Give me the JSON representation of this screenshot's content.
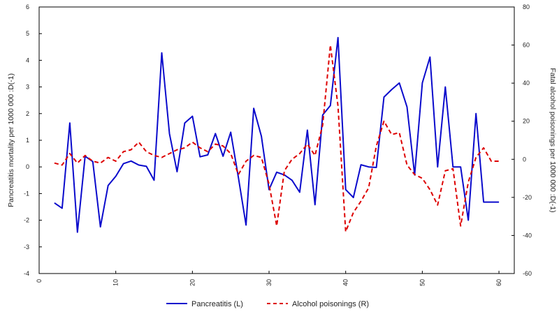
{
  "chart_data": {
    "type": "line",
    "xlim": [
      0,
      62
    ],
    "x_ticks": [
      0,
      10,
      20,
      30,
      40,
      50,
      60
    ],
    "left_axis": {
      "label": "Pancreatitis mortality per 1000 000 :D(-1)",
      "ylim": [
        -4,
        6
      ],
      "ticks": [
        -4,
        -3,
        -2,
        -1,
        0,
        1,
        2,
        3,
        4,
        5,
        6
      ]
    },
    "right_axis": {
      "label": "Fatal alcohol poisonings per 1000 000 :D(-1)",
      "ylim": [
        -60,
        80
      ],
      "ticks": [
        -60,
        -40,
        -20,
        0,
        20,
        40,
        60,
        80
      ]
    },
    "grid": false,
    "legend_position": "bottom",
    "series": [
      {
        "name": "Pancreatitis (L)",
        "axis": "left",
        "color": "#0a0acc",
        "style": "solid",
        "x": [
          2,
          3,
          4,
          5,
          6,
          7,
          8,
          9,
          10,
          11,
          12,
          13,
          14,
          15,
          16,
          17,
          18,
          19,
          20,
          21,
          22,
          23,
          24,
          25,
          26,
          27,
          28,
          29,
          30,
          31,
          32,
          33,
          34,
          35,
          36,
          37,
          38,
          39,
          40,
          41,
          42,
          43,
          44,
          45,
          46,
          47,
          48,
          49,
          50,
          51,
          52,
          53,
          54,
          55,
          56,
          57,
          58,
          59,
          60
        ],
        "values": [
          -1.35,
          -1.55,
          1.65,
          -2.45,
          0.4,
          0.2,
          -2.25,
          -0.7,
          -0.35,
          0.12,
          0.22,
          0.07,
          0.02,
          -0.5,
          4.28,
          1.25,
          -0.18,
          1.65,
          1.9,
          0.38,
          0.45,
          1.25,
          0.4,
          1.3,
          -0.4,
          -2.18,
          2.2,
          1.15,
          -0.85,
          -0.2,
          -0.3,
          -0.5,
          -0.95,
          1.38,
          -1.42,
          1.95,
          2.3,
          4.85,
          -0.85,
          -1.15,
          0.08,
          0,
          -0.02,
          2.62,
          2.9,
          3.15,
          2.25,
          -0.3,
          3.15,
          4.12,
          0,
          3,
          0,
          0,
          -2,
          2,
          -1.32,
          -1.32,
          -1.32
        ]
      },
      {
        "name": "Alcohol poisonings (R)",
        "axis": "right",
        "color": "#dd0000",
        "style": "dashed",
        "x": [
          2,
          3,
          4,
          5,
          6,
          7,
          8,
          9,
          10,
          11,
          12,
          13,
          14,
          15,
          16,
          17,
          18,
          19,
          20,
          21,
          22,
          23,
          24,
          25,
          26,
          27,
          28,
          29,
          30,
          31,
          32,
          33,
          34,
          35,
          36,
          37,
          38,
          39,
          40,
          41,
          42,
          43,
          44,
          45,
          46,
          47,
          48,
          49,
          50,
          51,
          52,
          53,
          54,
          55,
          56,
          57,
          58,
          59,
          60
        ],
        "values": [
          -2,
          -3,
          3,
          -2,
          2,
          -1,
          -2,
          1,
          -1,
          4,
          5,
          9,
          4,
          2,
          1,
          3,
          5,
          6,
          9,
          6,
          4,
          8,
          7,
          3,
          -8,
          -1,
          2,
          1,
          -13,
          -35,
          -6,
          0,
          3,
          8,
          2,
          18,
          60,
          28,
          -38,
          -28,
          -22,
          -15,
          7,
          20,
          13,
          14,
          -3,
          -8,
          -10,
          -16,
          -24,
          -6,
          -5,
          -35,
          -12,
          1,
          6,
          -1,
          -1
        ]
      }
    ]
  }
}
